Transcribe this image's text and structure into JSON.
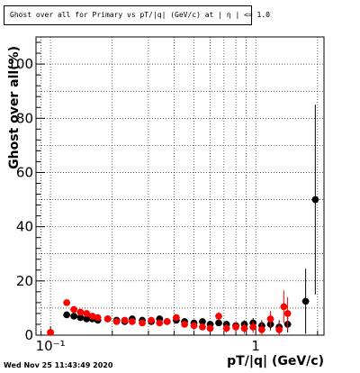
{
  "chart_data": {
    "type": "scatter",
    "title": "Ghost over all for Primary vs pT/|q| (GeV/c) at | η | <= 1.0",
    "xlabel": "pT/|q| (GeV/c)",
    "ylabel": "Ghost over all(%)",
    "x_scale": "log",
    "xlim": [
      0.085,
      2.15
    ],
    "ylim": [
      0,
      110
    ],
    "x_tick_labels": [
      "10⁻¹",
      "1"
    ],
    "y_ticks": [
      0,
      20,
      40,
      60,
      80,
      100
    ],
    "grid": true,
    "series": [
      {
        "color": "#000000",
        "points": [
          {
            "x": 0.1,
            "y": 1,
            "err": 1
          },
          {
            "x": 0.12,
            "y": 7.5,
            "err": 0.6
          },
          {
            "x": 0.13,
            "y": 7,
            "err": 0.5
          },
          {
            "x": 0.14,
            "y": 6.5,
            "err": 0.5
          },
          {
            "x": 0.15,
            "y": 6,
            "err": 0.5
          },
          {
            "x": 0.16,
            "y": 6,
            "err": 0.5
          },
          {
            "x": 0.17,
            "y": 5.5,
            "err": 0.5
          },
          {
            "x": 0.19,
            "y": 6,
            "err": 0.5
          },
          {
            "x": 0.21,
            "y": 5.5,
            "err": 0.5
          },
          {
            "x": 0.23,
            "y": 5,
            "err": 0.5
          },
          {
            "x": 0.25,
            "y": 6,
            "err": 0.5
          },
          {
            "x": 0.28,
            "y": 5.5,
            "err": 0.6
          },
          {
            "x": 0.31,
            "y": 5,
            "err": 0.6
          },
          {
            "x": 0.34,
            "y": 6,
            "err": 0.7
          },
          {
            "x": 0.37,
            "y": 5,
            "err": 0.7
          },
          {
            "x": 0.41,
            "y": 5.5,
            "err": 0.8
          },
          {
            "x": 0.45,
            "y": 5,
            "err": 0.8
          },
          {
            "x": 0.5,
            "y": 4.5,
            "err": 0.9
          },
          {
            "x": 0.55,
            "y": 5,
            "err": 1
          },
          {
            "x": 0.6,
            "y": 4,
            "err": 1
          },
          {
            "x": 0.66,
            "y": 4.5,
            "err": 1.1
          },
          {
            "x": 0.72,
            "y": 4,
            "err": 1.2
          },
          {
            "x": 0.8,
            "y": 3.5,
            "err": 1.3
          },
          {
            "x": 0.88,
            "y": 4,
            "err": 1.5
          },
          {
            "x": 0.97,
            "y": 4.5,
            "err": 1.8
          },
          {
            "x": 1.07,
            "y": 3.5,
            "err": 2
          },
          {
            "x": 1.18,
            "y": 4,
            "err": 2.2
          },
          {
            "x": 1.3,
            "y": 3,
            "err": 2.5
          },
          {
            "x": 1.43,
            "y": 4,
            "err": 3
          },
          {
            "x": 1.75,
            "y": 12.5,
            "err": 12
          },
          {
            "x": 1.95,
            "y": 50,
            "err": 35
          }
        ]
      },
      {
        "color": "#ff0000",
        "points": [
          {
            "x": 0.1,
            "y": 1,
            "err": 1
          },
          {
            "x": 0.12,
            "y": 12,
            "err": 1
          },
          {
            "x": 0.13,
            "y": 9.5,
            "err": 0.8
          },
          {
            "x": 0.14,
            "y": 8.5,
            "err": 0.7
          },
          {
            "x": 0.15,
            "y": 8,
            "err": 0.7
          },
          {
            "x": 0.16,
            "y": 7,
            "err": 0.6
          },
          {
            "x": 0.17,
            "y": 6.5,
            "err": 0.6
          },
          {
            "x": 0.19,
            "y": 6,
            "err": 0.6
          },
          {
            "x": 0.21,
            "y": 5,
            "err": 0.6
          },
          {
            "x": 0.23,
            "y": 5.5,
            "err": 0.6
          },
          {
            "x": 0.25,
            "y": 5,
            "err": 0.7
          },
          {
            "x": 0.28,
            "y": 4.5,
            "err": 0.7
          },
          {
            "x": 0.31,
            "y": 5.5,
            "err": 0.8
          },
          {
            "x": 0.34,
            "y": 4.5,
            "err": 0.8
          },
          {
            "x": 0.37,
            "y": 5,
            "err": 0.9
          },
          {
            "x": 0.41,
            "y": 6.5,
            "err": 1
          },
          {
            "x": 0.45,
            "y": 4,
            "err": 1
          },
          {
            "x": 0.5,
            "y": 3.5,
            "err": 1.1
          },
          {
            "x": 0.55,
            "y": 3,
            "err": 1.2
          },
          {
            "x": 0.6,
            "y": 2.5,
            "err": 1.3
          },
          {
            "x": 0.66,
            "y": 7,
            "err": 1.5
          },
          {
            "x": 0.72,
            "y": 2.5,
            "err": 1.5
          },
          {
            "x": 0.8,
            "y": 3,
            "err": 1.8
          },
          {
            "x": 0.88,
            "y": 2.5,
            "err": 2
          },
          {
            "x": 0.97,
            "y": 3,
            "err": 2.2
          },
          {
            "x": 1.07,
            "y": 2,
            "err": 2.5
          },
          {
            "x": 1.18,
            "y": 6,
            "err": 3
          },
          {
            "x": 1.3,
            "y": 2,
            "err": 3
          },
          {
            "x": 1.37,
            "y": 10.5,
            "err": 6
          },
          {
            "x": 1.43,
            "y": 8,
            "err": 6
          }
        ]
      }
    ]
  },
  "footer": {
    "timestamp": "Wed Nov 25 11:43:49 2020"
  }
}
